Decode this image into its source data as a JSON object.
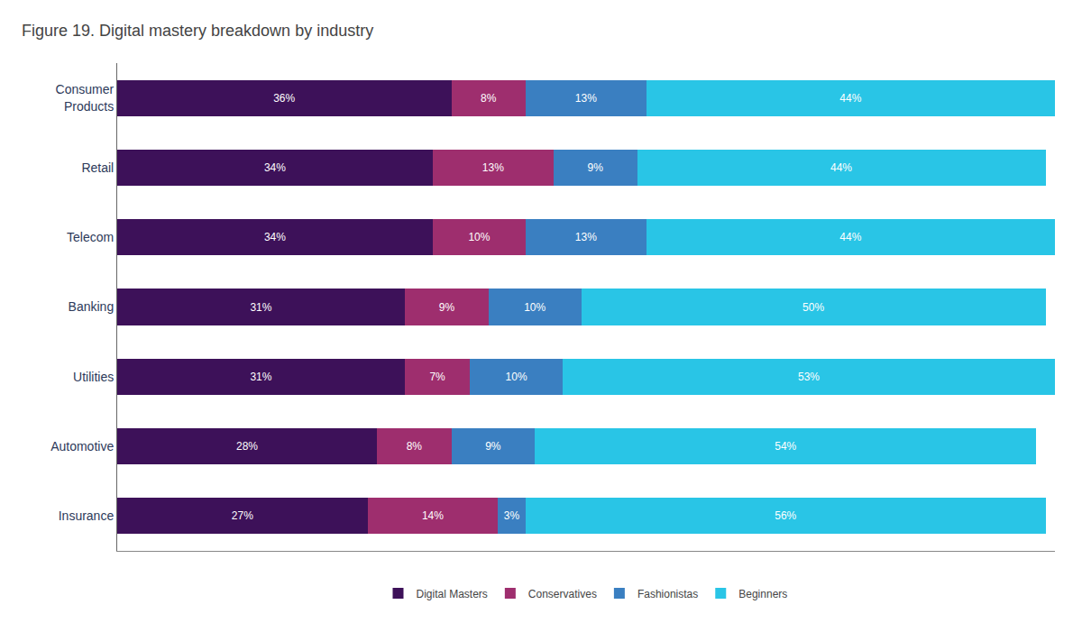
{
  "chart_data": {
    "type": "bar",
    "orientation": "horizontal",
    "stacked": true,
    "title": "Figure 19. Digital mastery breakdown by industry",
    "categories": [
      "Consumer\nProducts",
      "Retail",
      "Telecom",
      "Banking",
      "Utilities",
      "Automotive",
      "Insurance"
    ],
    "series": [
      {
        "name": "Digital Masters",
        "color": "#3d1159",
        "values": [
          36,
          34,
          34,
          31,
          31,
          28,
          27
        ],
        "value_labels": [
          "36%",
          "34%",
          "34%",
          "31%",
          "31%",
          "28%",
          "27%"
        ]
      },
      {
        "name": "Conservatives",
        "color": "#9e2e6e",
        "values": [
          8,
          13,
          10,
          9,
          7,
          8,
          14
        ],
        "value_labels": [
          "8%",
          "13%",
          "10%",
          "9%",
          "7%",
          "8%",
          "14%"
        ]
      },
      {
        "name": "Fashionistas",
        "color": "#3a7fc1",
        "values": [
          13,
          9,
          13,
          10,
          10,
          9,
          3
        ],
        "value_labels": [
          "13%",
          "9%",
          "13%",
          "10%",
          "10%",
          "9%",
          "3%"
        ]
      },
      {
        "name": "Beginners",
        "color": "#29c5e6",
        "values": [
          44,
          44,
          44,
          50,
          53,
          54,
          56
        ],
        "value_labels": [
          "44%",
          "44%",
          "44%",
          "50%",
          "53%",
          "54%",
          "56%"
        ]
      }
    ],
    "xlim": [
      0,
      101
    ],
    "data_labels": true,
    "tick_labels": "y",
    "grid": false,
    "legend": "bottom"
  }
}
